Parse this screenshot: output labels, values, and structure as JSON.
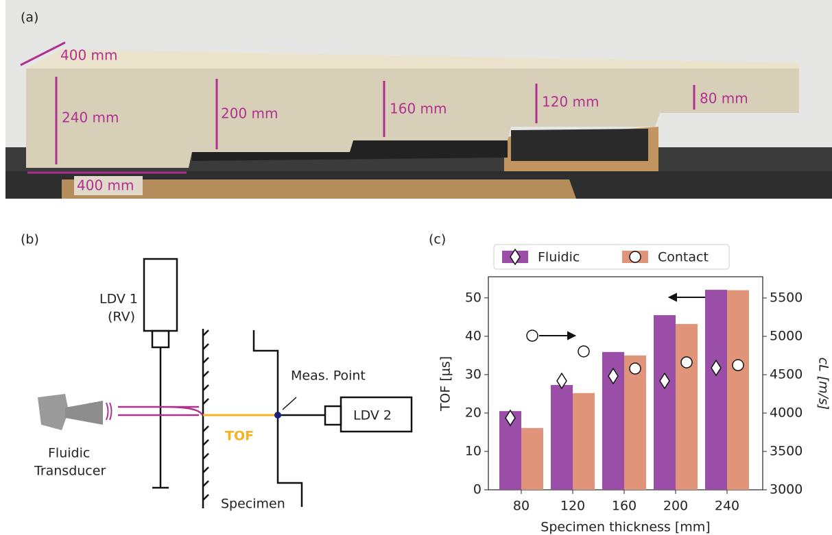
{
  "panel_a": {
    "label": "(a)",
    "dimensions": [
      "400 mm",
      "240 mm",
      "200 mm",
      "160 mm",
      "120 mm",
      "80 mm",
      "400 mm"
    ]
  },
  "panel_b": {
    "label": "(b)",
    "ldv1": "LDV 1",
    "ldv1_mode": "(RV)",
    "meas_point": "Meas. Point",
    "ldv2": "LDV 2",
    "tof": "TOF",
    "transducer_1": "Fluidic",
    "transducer_2": "Transducer",
    "specimen": "Specimen"
  },
  "chart_data": {
    "type": "bar",
    "label": "(c)",
    "categories": [
      "80",
      "120",
      "160",
      "200",
      "240"
    ],
    "xlabel": "Specimen thickness [mm]",
    "ylabel": "TOF [μs]",
    "y2label": "cL [m/s]",
    "ylim": [
      0,
      55.5
    ],
    "yticks": [
      0,
      10,
      20,
      30,
      40,
      50
    ],
    "y2lim": [
      3000,
      5777
    ],
    "y2ticks": [
      3000,
      3500,
      4000,
      4500,
      5000,
      5500
    ],
    "grid": false,
    "legend": "top",
    "series": [
      {
        "name": "Fluidic",
        "color": "#9b4ea7",
        "marker": "diamond",
        "values": [
          20.5,
          27.3,
          35.9,
          45.5,
          52.1
        ],
        "y2_values": [
          3937,
          4420,
          4482,
          4420,
          4589
        ]
      },
      {
        "name": "Contact",
        "color": "#e0957a",
        "marker": "circle",
        "values": [
          16.1,
          25.2,
          35.0,
          43.2,
          52.0
        ],
        "y2_values": [
          5009,
          4804,
          4580,
          4661,
          4625
        ]
      }
    ]
  }
}
